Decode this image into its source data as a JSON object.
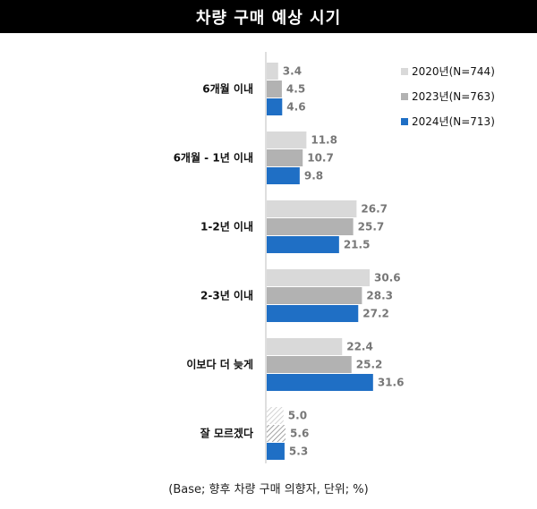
{
  "chart_data": {
    "type": "bar",
    "orientation": "horizontal",
    "title": "차량 구매 예상 시기",
    "categories": [
      "6개월 이내",
      "6개월 - 1년 이내",
      "1-2년 이내",
      "2-3년 이내",
      "이보다 더 늦게",
      "잘 모르겠다"
    ],
    "series": [
      {
        "name": "2020년(N=744)",
        "values": [
          3.4,
          11.8,
          26.7,
          30.6,
          22.4,
          5.0
        ],
        "color": "#d9d9d9"
      },
      {
        "name": "2023년(N=763)",
        "values": [
          4.5,
          10.7,
          25.7,
          28.3,
          25.2,
          5.6
        ],
        "color": "#b2b2b2"
      },
      {
        "name": "2024년(N=713)",
        "values": [
          4.6,
          9.8,
          21.5,
          27.2,
          31.6,
          5.3
        ],
        "color": "#1f6fc5"
      }
    ],
    "value_labels": [
      [
        "3.4",
        "11.8",
        "26.7",
        "30.6",
        "22.4",
        "5.0"
      ],
      [
        "4.5",
        "10.7",
        "25.7",
        "28.3",
        "25.2",
        "5.6"
      ],
      [
        "4.6",
        "9.8",
        "21.5",
        "27.2",
        "31.6",
        "5.3"
      ]
    ],
    "hatched_category": "잘 모르겠다",
    "legend_position": "top-right",
    "grid": false,
    "xlim": [
      0,
      35
    ]
  },
  "footnote": "(Base; 향후 차량 구매 의향자, 단위; %)"
}
